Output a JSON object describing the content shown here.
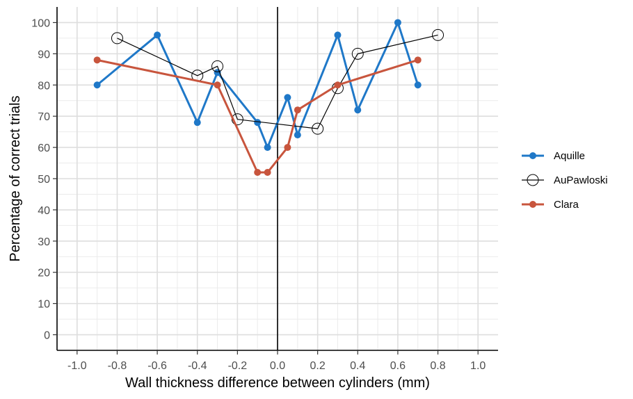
{
  "chart_data": {
    "type": "line",
    "title": "",
    "xlabel": "Wall thickness difference between cylinders (mm)",
    "ylabel": "Percentage of correct trials",
    "xlim": [
      -1.1,
      1.1
    ],
    "ylim": [
      -5,
      105
    ],
    "x_ticks": [
      -1.0,
      -0.8,
      -0.6,
      -0.4,
      -0.2,
      0.0,
      0.2,
      0.4,
      0.6,
      0.8,
      1.0
    ],
    "x_tick_labels": [
      "-1.0",
      "-0.8",
      "-0.6",
      "-0.4",
      "-0.2",
      "0.0",
      "0.2",
      "0.4",
      "0.6",
      "0.8",
      "1.0"
    ],
    "y_ticks": [
      0,
      10,
      20,
      30,
      40,
      50,
      60,
      70,
      80,
      90,
      100
    ],
    "y_tick_labels": [
      "0",
      "10",
      "20",
      "30",
      "40",
      "50",
      "60",
      "70",
      "80",
      "90",
      "100"
    ],
    "grid": true,
    "reference_line_x": 0,
    "legend_position": "right",
    "series": [
      {
        "name": "Aquille",
        "color": "#1f78c8",
        "marker": "filled-circle",
        "points": [
          [
            -0.9,
            80
          ],
          [
            -0.6,
            96
          ],
          [
            -0.4,
            68
          ],
          [
            -0.3,
            84
          ],
          [
            -0.1,
            68
          ],
          [
            -0.05,
            60
          ],
          [
            0.05,
            76
          ],
          [
            0.1,
            64
          ],
          [
            0.3,
            96
          ],
          [
            0.4,
            72
          ],
          [
            0.6,
            100
          ],
          [
            0.7,
            80
          ]
        ]
      },
      {
        "name": "AuPawloski",
        "color": "#000000",
        "marker": "open-circle",
        "points": [
          [
            -0.8,
            95
          ],
          [
            -0.4,
            83
          ],
          [
            -0.3,
            86
          ],
          [
            -0.2,
            69
          ],
          [
            0.2,
            66
          ],
          [
            0.3,
            79
          ],
          [
            0.4,
            90
          ],
          [
            0.8,
            96
          ]
        ]
      },
      {
        "name": "Clara",
        "color": "#c8553d",
        "marker": "filled-circle",
        "points": [
          [
            -0.9,
            88
          ],
          [
            -0.3,
            80
          ],
          [
            -0.1,
            52
          ],
          [
            -0.05,
            52
          ],
          [
            0.05,
            60
          ],
          [
            0.1,
            72
          ],
          [
            0.3,
            80
          ],
          [
            0.7,
            88
          ]
        ]
      }
    ]
  }
}
